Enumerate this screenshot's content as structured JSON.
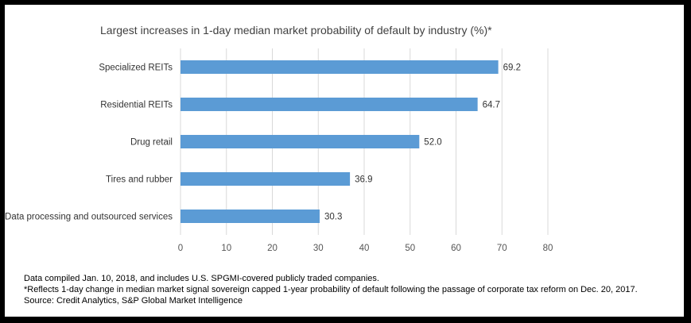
{
  "chart_data": {
    "type": "bar",
    "orientation": "horizontal",
    "title": "Largest increases in 1-day median market probability of default by industry (%)*",
    "categories": [
      "Specialized REITs",
      "Residential REITs",
      "Drug retail",
      "Tires and rubber",
      "Data processing and outsourced services"
    ],
    "values": [
      69.2,
      64.7,
      52.0,
      36.9,
      30.3
    ],
    "value_labels": [
      "69.2",
      "64.7",
      "52.0",
      "36.9",
      "30.3"
    ],
    "xlim": [
      0,
      80
    ],
    "xticks": [
      0,
      10,
      20,
      30,
      40,
      50,
      60,
      70,
      80
    ],
    "xlabel": "",
    "ylabel": "",
    "grid": true,
    "bar_color": "#5b9bd5",
    "grid_color": "#d9d9d9"
  },
  "footnotes": [
    "Data compiled Jan. 10, 2018, and includes U.S. SPGMI-covered publicly traded companies.",
    "*Reflects 1-day change in median market signal sovereign capped 1-year probability of default following the passage of corporate tax reform on Dec. 20, 2017.",
    "Source: Credit Analytics, S&P Global Market Intelligence"
  ]
}
